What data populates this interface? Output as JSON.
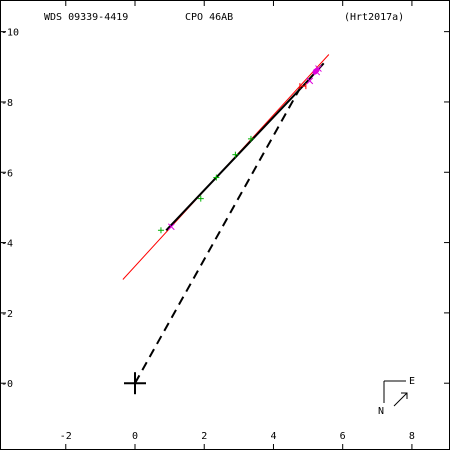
{
  "header": {
    "left": "WDS 09339-4419",
    "center": "CPO  46AB",
    "right": "(Hrt2017a)"
  },
  "compass": {
    "east": "E",
    "north": "N"
  },
  "chart_data": {
    "type": "scatter",
    "title": "WDS 09339-4419   CPO  46AB   (Hrt2017a)",
    "xlabel": "",
    "ylabel": "",
    "xlim": [
      -3.9,
      9.1
    ],
    "ylim": [
      -1.9,
      10.9
    ],
    "x_ticks": [
      -2,
      0,
      2,
      4,
      6,
      8
    ],
    "y_ticks": [
      0,
      2,
      4,
      6,
      8,
      10
    ],
    "x_tick_labels": [
      "-2",
      "0",
      "2",
      "4",
      "6",
      "8"
    ],
    "y_tick_labels": [
      "-0",
      "-2",
      "-4",
      "-6",
      "-8",
      "-10"
    ],
    "grid": false,
    "primary": {
      "x": 0,
      "y": 0
    },
    "orbit_line": {
      "x1": -0.35,
      "y1": 2.95,
      "x2": 5.6,
      "y2": 9.35,
      "color": "#ff0000"
    },
    "solid_path": [
      [
        0.9,
        4.35
      ],
      [
        4.85,
        8.45
      ],
      [
        5.45,
        9.1
      ]
    ],
    "dashed_line": {
      "x1": 0,
      "y1": 0,
      "x2": 4.8,
      "y2": 8.45
    },
    "colors": {
      "green": "#00b000",
      "magenta": "#dd00dd",
      "red": "#ff0000",
      "black": "#000000"
    },
    "series": [
      {
        "marker": "plus",
        "color": "#00b000",
        "points": [
          [
            0.75,
            4.35
          ],
          [
            1.9,
            5.25
          ],
          [
            2.35,
            5.85
          ],
          [
            2.9,
            6.5
          ],
          [
            3.35,
            6.95
          ]
        ]
      },
      {
        "marker": "cross",
        "color": "#dd00dd",
        "points": [
          [
            1.05,
            4.45
          ],
          [
            5.05,
            8.6
          ],
          [
            5.25,
            8.85
          ],
          [
            5.3,
            8.95
          ]
        ]
      },
      {
        "marker": "dot",
        "color": "#dd00dd",
        "points": [
          [
            5.2,
            8.85
          ],
          [
            5.25,
            8.9
          ]
        ]
      },
      {
        "marker": "box",
        "color": "#ff0000",
        "points": [
          [
            4.85,
            8.45
          ]
        ]
      }
    ]
  }
}
